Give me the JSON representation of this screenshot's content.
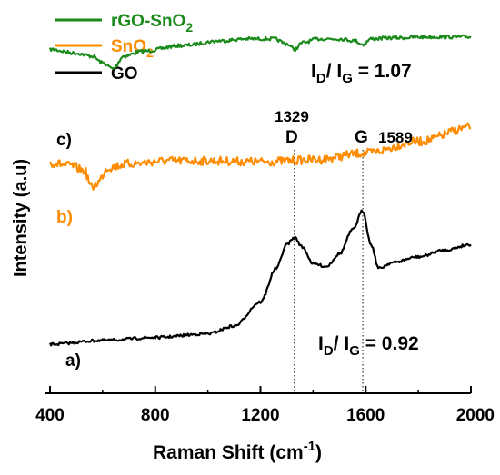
{
  "chart_data": {
    "type": "line",
    "title": "",
    "xlabel": "Raman Shift (cm",
    "xlabel_sup": "-1",
    "xlabel_close": ")",
    "ylabel": "Intensity (a.u)",
    "xlim": [
      400,
      2000
    ],
    "x_ticks": [
      "400",
      "800",
      "1200",
      "1600",
      "2000"
    ],
    "y_ticks": false,
    "grid": false,
    "legend_placement": "top-left",
    "legend": [
      {
        "name": "rGO-SnO",
        "sub": "2",
        "color": "#1a8a1a"
      },
      {
        "name": "SnO",
        "sub": "2",
        "color": "#ff8c00"
      },
      {
        "name": "GO",
        "sub": "",
        "color": "#000000"
      }
    ],
    "series": [
      {
        "name": "rGO-SnO2",
        "label": "c)",
        "color": "#1a8a1a",
        "x": [
          400,
          500,
          560,
          600,
          640,
          680,
          750,
          900,
          1050,
          1150,
          1250,
          1300,
          1330,
          1360,
          1420,
          1500,
          1560,
          1589,
          1620,
          1700,
          1850,
          2000
        ],
        "y": [
          4.2,
          4.6,
          4.9,
          5.6,
          6.2,
          4.9,
          4.4,
          3.8,
          3.3,
          3.1,
          3.1,
          3.6,
          4.2,
          3.5,
          3.1,
          3.1,
          3.3,
          3.7,
          3.1,
          3.0,
          2.9,
          2.9
        ]
      },
      {
        "name": "SnO2",
        "label": "b)",
        "color": "#ff8c00",
        "x": [
          400,
          480,
          530,
          560,
          580,
          620,
          700,
          850,
          1000,
          1200,
          1400,
          1600,
          1800,
          2000
        ],
        "y": [
          16.0,
          16.3,
          16.8,
          18.6,
          18.1,
          16.5,
          16.1,
          15.8,
          15.8,
          15.9,
          15.7,
          15.0,
          13.8,
          12.3
        ]
      },
      {
        "name": "GO",
        "label": "a)",
        "color": "#000000",
        "x": [
          400,
          600,
          800,
          1000,
          1100,
          1200,
          1260,
          1300,
          1330,
          1360,
          1400,
          1450,
          1500,
          1550,
          1589,
          1620,
          1650,
          1700,
          1800,
          1900,
          2000
        ],
        "y": [
          34.9,
          34.5,
          34.2,
          33.8,
          33.0,
          30.5,
          27.0,
          24.5,
          23.8,
          24.8,
          26.5,
          26.8,
          25.5,
          23.0,
          21.0,
          24.5,
          27.0,
          26.4,
          25.8,
          25.1,
          24.5
        ]
      }
    ],
    "peaks": [
      {
        "x": 1329,
        "letter": "D",
        "value": "1329"
      },
      {
        "x": 1589,
        "letter": "G",
        "value": "1589"
      }
    ],
    "annotations": {
      "ratio_top": {
        "I1": "I",
        "s1": "D",
        "slash": "/ ",
        "I2": "I",
        "s2": "G",
        "rest": " = 1.07"
      },
      "ratio_bottom": {
        "I1": "I",
        "s1": "D",
        "slash": "/ ",
        "I2": "I",
        "s2": "G",
        "rest": " = 0.92"
      }
    }
  }
}
